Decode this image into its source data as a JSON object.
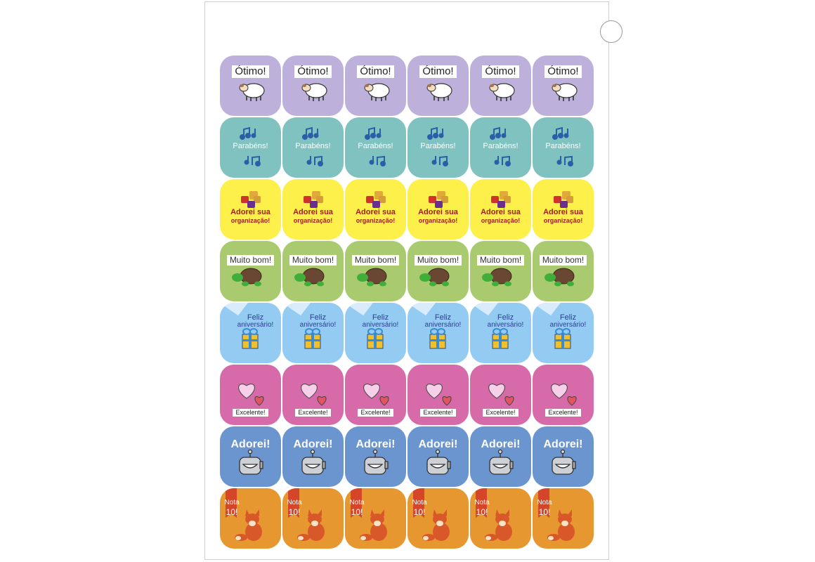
{
  "sticker_sheet": {
    "columns": 6,
    "rows": [
      {
        "text": "Ótimo!",
        "icon": "sheep-icon",
        "bg": "#bdb1dc",
        "color": "#222222",
        "style": "banner-top"
      },
      {
        "text": "Parabéns!",
        "icon": "music-notes-icon",
        "bg": "#7fc2bf",
        "color": "#ffffff",
        "style": "middle"
      },
      {
        "text": "Adorei sua organização!",
        "line1": "Adorei sua",
        "line2": "organização!",
        "icon": "puzzle-icon",
        "bg": "#fdf04a",
        "color": "#a1201c",
        "style": "bottom2"
      },
      {
        "text": "Muito bom!",
        "icon": "turtle-icon",
        "bg": "#a9ca6e",
        "color": "#333333",
        "style": "banner-top"
      },
      {
        "text": "Feliz aniversário!",
        "line1": "Feliz",
        "line2": "aniversário!",
        "icon": "gift-icon",
        "bg": "#93cbf3",
        "color": "#2c3e8f",
        "style": "top2"
      },
      {
        "text": "Excelente!",
        "icon": "hearts-icon",
        "bg": "#d76aa9",
        "color": "#222222",
        "style": "banner-bottom"
      },
      {
        "text": "Adorei!",
        "icon": "robot-icon",
        "bg": "#6a95cf",
        "color": "#ffffff",
        "style": "top"
      },
      {
        "text": "Nota 10!",
        "line1": "Nota",
        "line2": "10!",
        "icon": "fox-icon",
        "bg": "#e6972f",
        "color": "#ffffff",
        "style": "ribbon"
      }
    ]
  }
}
